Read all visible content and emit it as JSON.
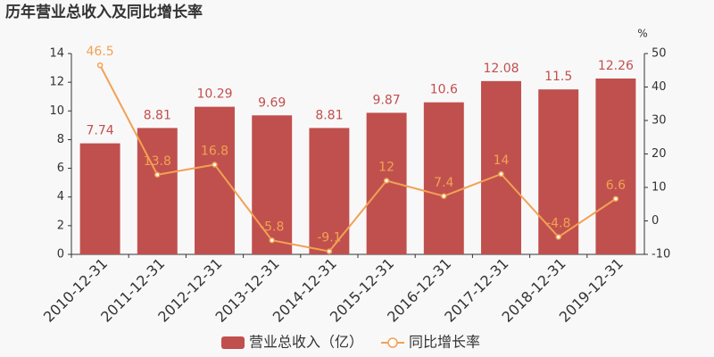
{
  "chart_data": {
    "type": "bar",
    "title": "历年营业总收入及同比增长率",
    "categories": [
      "2010-12-31",
      "2011-12-31",
      "2012-12-31",
      "2013-12-31",
      "2014-12-31",
      "2015-12-31",
      "2016-12-31",
      "2017-12-31",
      "2018-12-31",
      "2019-12-31"
    ],
    "series": [
      {
        "name": "营业总收入（亿）",
        "type": "bar",
        "color": "#c0504d",
        "values": [
          7.74,
          8.81,
          10.29,
          9.69,
          8.81,
          9.87,
          10.6,
          12.08,
          11.5,
          12.26
        ]
      },
      {
        "name": "同比增长率",
        "type": "line",
        "axis": "y2",
        "color": "#f2a154",
        "values": [
          46.5,
          13.8,
          16.8,
          -5.8,
          -9.1,
          12,
          7.4,
          14,
          -4.8,
          6.6
        ]
      }
    ],
    "ylim": [
      0,
      14
    ],
    "yticks": [
      0,
      2,
      4,
      6,
      8,
      10,
      12,
      14
    ],
    "y2lim": [
      -10,
      50
    ],
    "y2ticks": [
      -10,
      0,
      10,
      20,
      30,
      40,
      50
    ],
    "y2label": "%",
    "grid": false,
    "legend": "bottom"
  }
}
